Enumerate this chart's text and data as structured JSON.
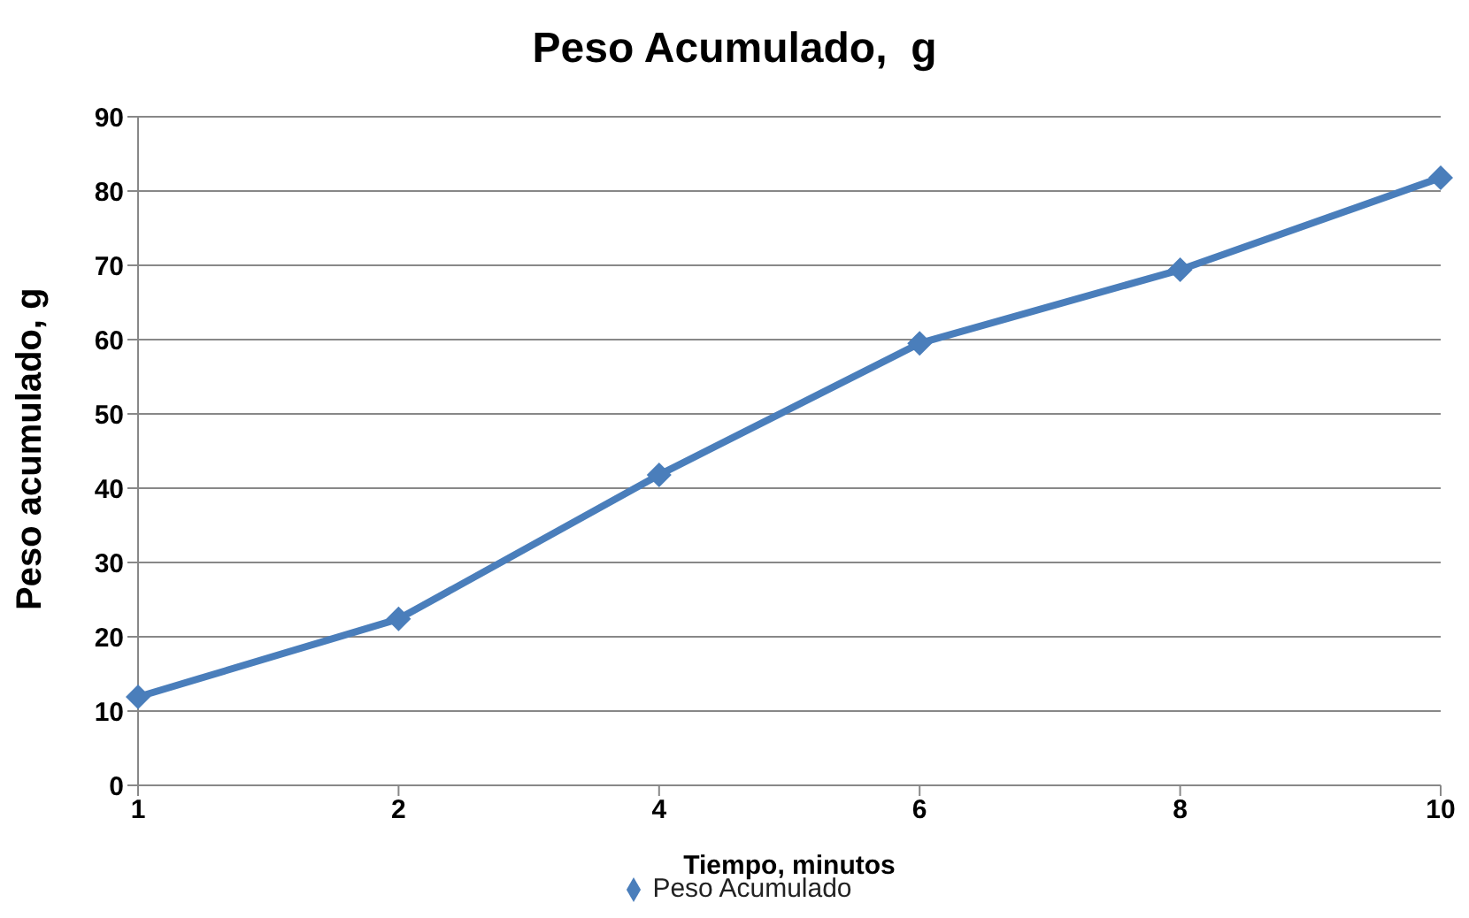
{
  "chart_data": {
    "type": "line",
    "title": "Peso Acumulado,  g",
    "xlabel": "Tiempo,  minutos",
    "ylabel": "Peso acumulado, g",
    "categories": [
      "1",
      "2",
      "4",
      "6",
      "8",
      "10"
    ],
    "series": [
      {
        "name": "Peso Acumulado",
        "color": "#4a7ebb",
        "values": [
          11.9,
          22.4,
          41.8,
          59.5,
          69.4,
          81.8
        ]
      }
    ],
    "ylim": [
      0,
      90
    ],
    "yticks": [
      0,
      10,
      20,
      30,
      40,
      50,
      60,
      70,
      80,
      90
    ],
    "grid": "y",
    "legend": "bottom",
    "marker": "diamond",
    "line_style": "solid"
  }
}
